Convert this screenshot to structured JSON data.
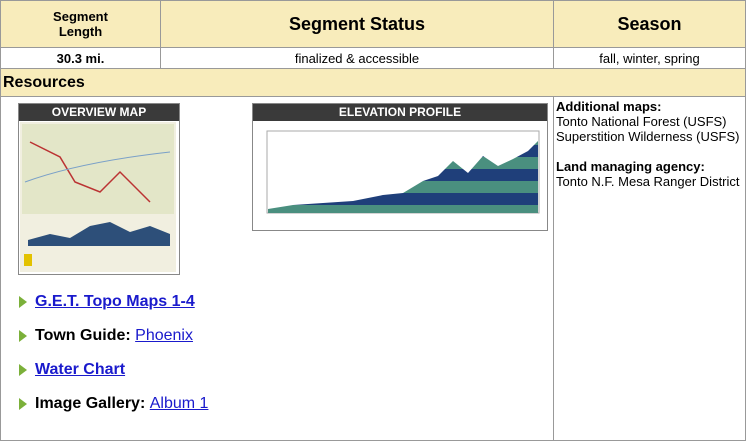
{
  "header": {
    "columns": [
      "Segment Length",
      "Segment Status",
      "Season"
    ]
  },
  "summary": {
    "length": "30.3 mi.",
    "status": "finalized & accessible",
    "season": "fall, winter, spring"
  },
  "resources": {
    "title": "Resources",
    "overview_map": "OVERVIEW MAP",
    "elevation_profile": "ELEVATION PROFILE",
    "links": [
      {
        "link": "G.E.T. Topo Maps 1-4"
      },
      {
        "label": "Town Guide:",
        "link": "Phoenix"
      },
      {
        "link": "Water Chart"
      },
      {
        "label": "Image Gallery:",
        "link": "Album 1"
      }
    ],
    "side": {
      "maps_title": "Additional maps:",
      "maps": [
        "Tonto National Forest (USFS)",
        "Superstition Wilderness (USFS)"
      ],
      "agency_title": "Land managing agency:",
      "agency": "Tonto N.F. Mesa Ranger District"
    }
  }
}
